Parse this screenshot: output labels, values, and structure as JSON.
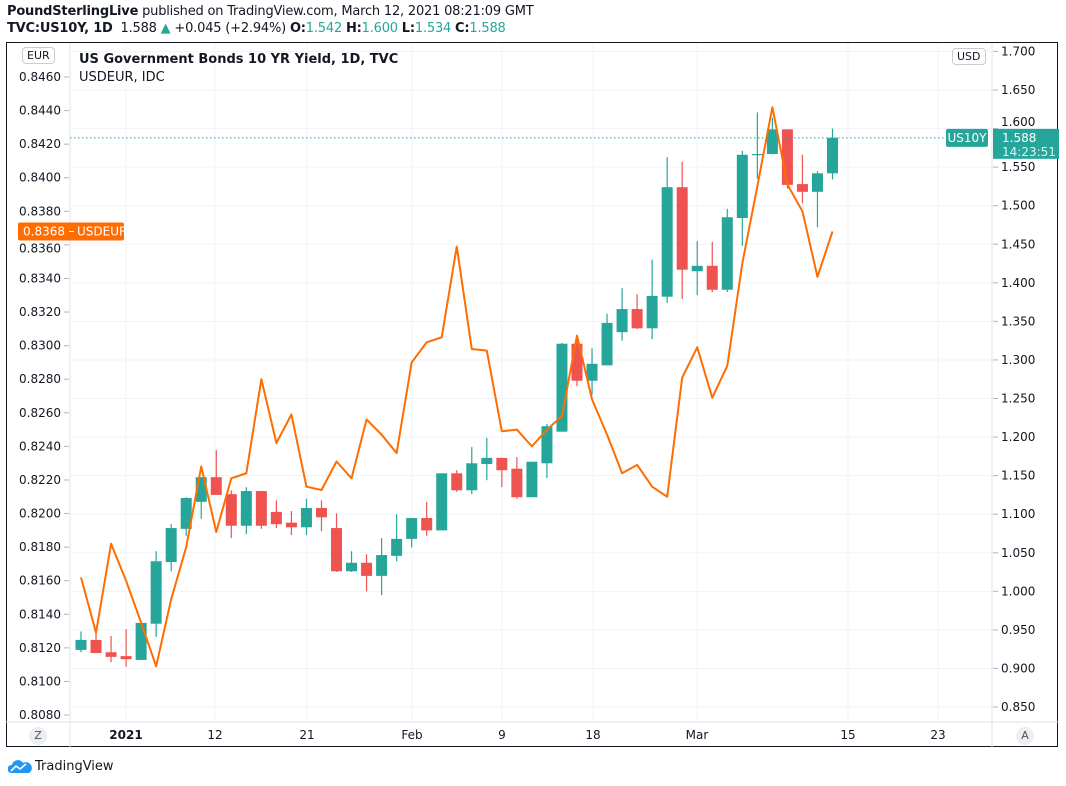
{
  "header": {
    "publisher": "PoundSterlingLive",
    "published_text": "published on TradingView.com, March 12, 2021 08:21:09 GMT",
    "symbol": "TVC:US10Y, 1D",
    "last": "1.588",
    "change": "+0.045 (+2.94%)",
    "o_label": "O:",
    "o": "1.542",
    "h_label": "H:",
    "h": "1.600",
    "l_label": "L:",
    "l": "1.534",
    "c_label": "C:",
    "c": "1.588"
  },
  "legend": {
    "main": "US Government Bonds 10 YR Yield, 1D, TVC",
    "compare": "USDEUR, IDC"
  },
  "left_axis": {
    "currency": "EUR",
    "ticks": [
      "0.8460",
      "0.8440",
      "0.8420",
      "0.8400",
      "0.8380",
      "0.8360",
      "0.8340",
      "0.8320",
      "0.8300",
      "0.8280",
      "0.8260",
      "0.8240",
      "0.8220",
      "0.8200",
      "0.8180",
      "0.8160",
      "0.8140",
      "0.8120",
      "0.8100",
      "0.8080"
    ],
    "last_label": "0.8368",
    "last_series": "USDEUR"
  },
  "right_axis": {
    "currency": "USD",
    "ticks": [
      "1.700",
      "1.650",
      "1.600",
      "1.550",
      "1.500",
      "1.450",
      "1.400",
      "1.350",
      "1.300",
      "1.250",
      "1.200",
      "1.150",
      "1.100",
      "1.050",
      "1.000",
      "0.950",
      "0.900",
      "0.850"
    ],
    "last_symbol": "US10Y",
    "last_price": "1.588",
    "countdown": "14:23:51"
  },
  "time_axis": {
    "ticks": [
      "2021",
      "12",
      "21",
      "Feb",
      "9",
      "18",
      "Mar",
      "15",
      "23"
    ],
    "z_button": "Z",
    "a_button": "A"
  },
  "footer": {
    "brand": "TradingView"
  },
  "colors": {
    "up": "#26a69a",
    "down": "#ef5350",
    "compare": "#ff6d00",
    "grid": "#f0f3fa"
  },
  "chart_data": {
    "type": "candlestick+line",
    "title": "US Government Bonds 10 YR Yield, 1D, TVC",
    "ylim_right": [
      0.83,
      1.7
    ],
    "ylim_left": [
      0.8075,
      0.8475
    ],
    "grid": true,
    "series": [
      {
        "name": "US10Y",
        "axis": "right",
        "ohlc": [
          [
            0.924,
            0.948,
            0.921,
            0.937
          ],
          [
            0.937,
            0.946,
            0.92,
            0.92
          ],
          [
            0.921,
            0.942,
            0.908,
            0.915
          ],
          [
            0.916,
            0.951,
            0.902,
            0.912
          ],
          [
            0.911,
            0.96,
            0.911,
            0.959
          ],
          [
            0.958,
            1.052,
            0.941,
            1.039
          ],
          [
            1.038,
            1.087,
            1.026,
            1.082
          ],
          [
            1.081,
            1.122,
            1.072,
            1.121
          ],
          [
            1.116,
            1.148,
            1.094,
            1.148
          ],
          [
            1.148,
            1.183,
            1.125,
            1.125
          ],
          [
            1.126,
            1.131,
            1.069,
            1.085
          ],
          [
            1.085,
            1.135,
            1.074,
            1.13
          ],
          [
            1.13,
            1.13,
            1.081,
            1.085
          ],
          [
            1.103,
            1.118,
            1.082,
            1.087
          ],
          [
            1.089,
            1.104,
            1.073,
            1.083
          ],
          [
            1.083,
            1.12,
            1.073,
            1.108
          ],
          [
            1.108,
            1.118,
            1.078,
            1.096
          ],
          [
            1.082,
            1.101,
            1.025,
            1.026
          ],
          [
            1.026,
            1.052,
            1.025,
            1.037
          ],
          [
            1.037,
            1.048,
            1.0,
            1.02
          ],
          [
            1.02,
            1.069,
            0.995,
            1.047
          ],
          [
            1.046,
            1.1,
            1.039,
            1.068
          ],
          [
            1.068,
            1.095,
            1.057,
            1.095
          ],
          [
            1.095,
            1.116,
            1.072,
            1.079
          ],
          [
            1.079,
            1.153,
            1.079,
            1.153
          ],
          [
            1.153,
            1.157,
            1.129,
            1.131
          ],
          [
            1.131,
            1.187,
            1.126,
            1.166
          ],
          [
            1.165,
            1.199,
            1.144,
            1.173
          ],
          [
            1.173,
            1.173,
            1.135,
            1.157
          ],
          [
            1.159,
            1.174,
            1.12,
            1.122
          ],
          [
            1.122,
            1.168,
            1.122,
            1.168
          ],
          [
            1.166,
            1.217,
            1.147,
            1.214
          ],
          [
            1.207,
            1.322,
            1.207,
            1.321
          ],
          [
            1.321,
            1.326,
            1.266,
            1.273
          ],
          [
            1.273,
            1.315,
            1.255,
            1.295
          ],
          [
            1.293,
            1.36,
            1.293,
            1.348
          ],
          [
            1.336,
            1.393,
            1.325,
            1.366
          ],
          [
            1.366,
            1.385,
            1.34,
            1.341
          ],
          [
            1.341,
            1.43,
            1.327,
            1.383
          ],
          [
            1.382,
            1.563,
            1.374,
            1.524
          ],
          [
            1.524,
            1.557,
            1.379,
            1.417
          ],
          [
            1.415,
            1.454,
            1.384,
            1.422
          ],
          [
            1.422,
            1.453,
            1.388,
            1.391
          ],
          [
            1.391,
            1.496,
            1.388,
            1.485
          ],
          [
            1.484,
            1.571,
            1.448,
            1.566
          ],
          [
            1.566,
            1.621,
            1.535,
            1.567
          ],
          [
            1.567,
            1.614,
            1.567,
            1.599
          ],
          [
            1.599,
            1.599,
            1.522,
            1.527
          ],
          [
            1.528,
            1.566,
            1.503,
            1.518
          ],
          [
            1.518,
            1.545,
            1.472,
            1.542
          ],
          [
            1.542,
            1.6,
            1.534,
            1.588
          ]
        ]
      },
      {
        "name": "USDEUR",
        "axis": "left",
        "values": [
          0.8162,
          0.8129,
          0.8182,
          0.816,
          0.8135,
          0.8109,
          0.8149,
          0.818,
          0.8228,
          0.8189,
          0.8221,
          0.8224,
          0.828,
          0.8242,
          0.8259,
          0.8216,
          0.8214,
          0.8231,
          0.8221,
          0.8256,
          0.8247,
          0.8236,
          0.829,
          0.8302,
          0.8305,
          0.8359,
          0.8298,
          0.8297,
          0.8249,
          0.825,
          0.824,
          0.825,
          0.8258,
          0.8306,
          0.8268,
          0.8247,
          0.8224,
          0.8229,
          0.8216,
          0.821,
          0.8281,
          0.8299,
          0.8269,
          0.8288,
          0.8349,
          0.8395,
          0.8442,
          0.8396,
          0.838,
          0.8341,
          0.8368
        ]
      }
    ]
  }
}
